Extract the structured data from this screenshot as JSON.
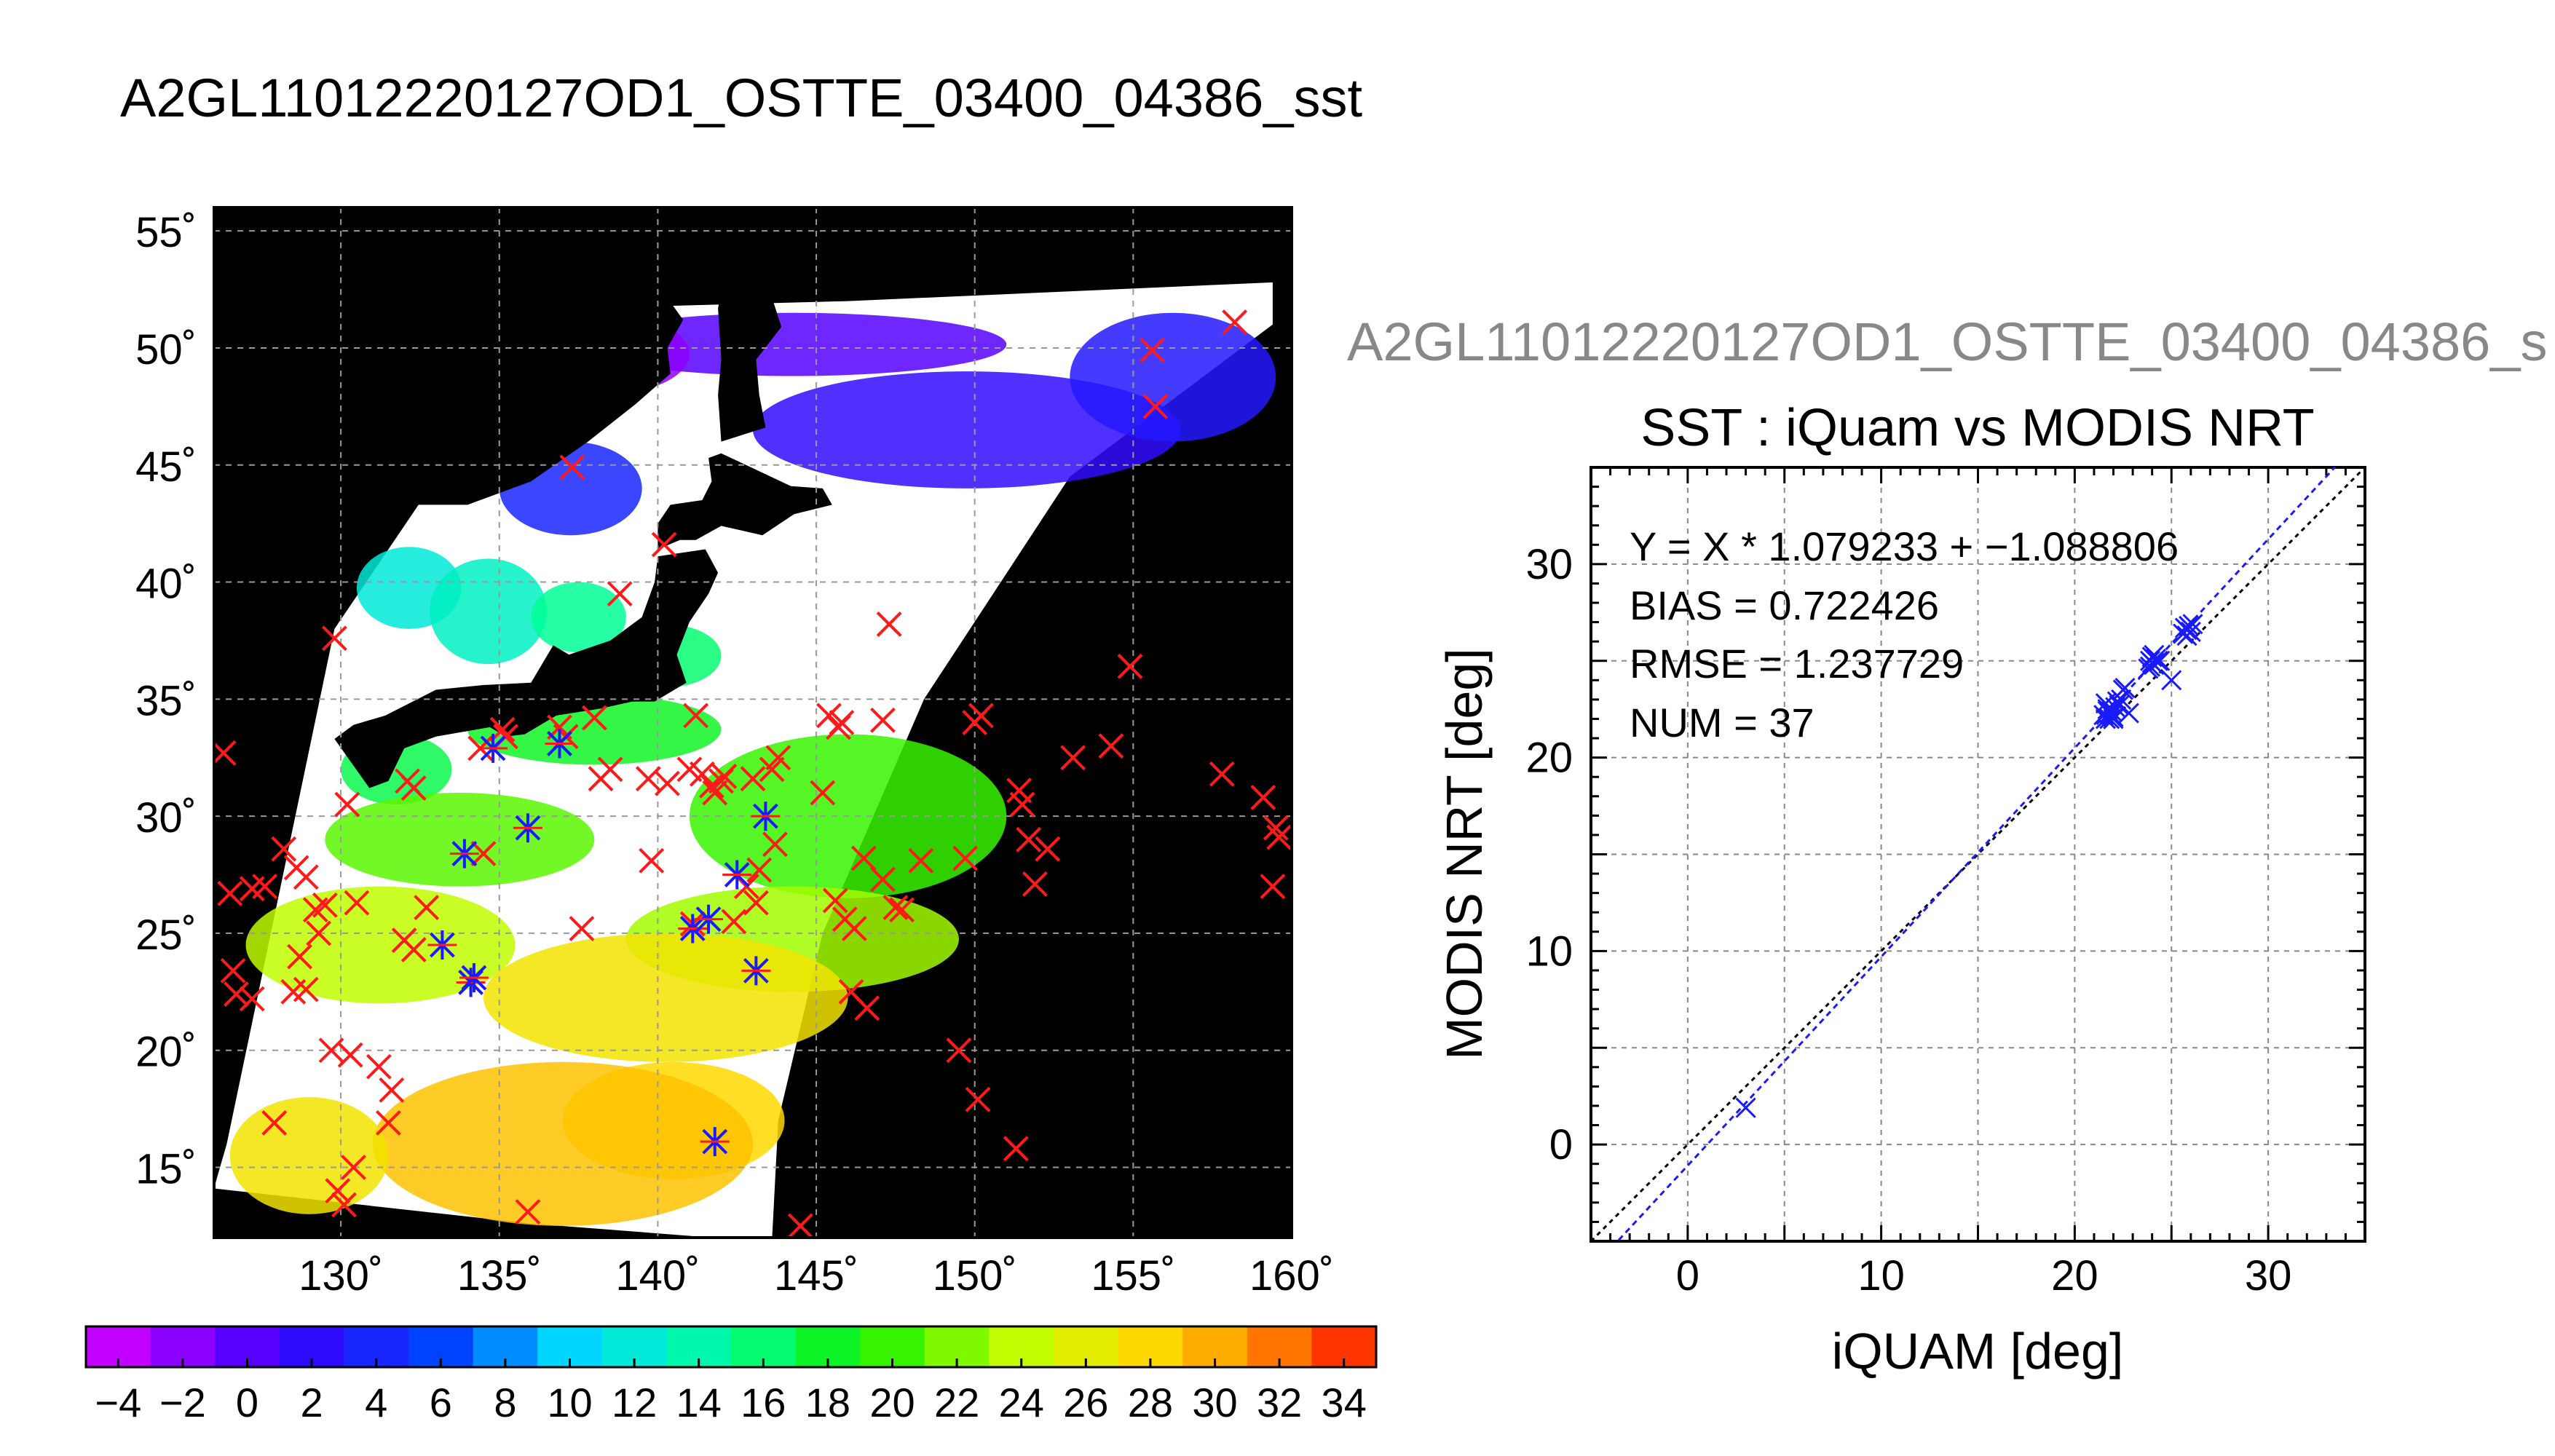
{
  "page": {
    "title": "A2GL11012220127OD1_OSTTE_03400_04386_sst"
  },
  "map": {
    "lat_ticks": [
      "55˚",
      "50˚",
      "45˚",
      "40˚",
      "35˚",
      "30˚",
      "25˚",
      "20˚",
      "15˚"
    ],
    "lon_ticks": [
      "130˚",
      "135˚",
      "140˚",
      "145˚",
      "150˚",
      "155˚",
      "160˚"
    ],
    "lon_range": [
      126,
      160
    ],
    "lat_range": [
      12,
      56
    ],
    "grid": true,
    "background": "#000000",
    "cloud_color": "#ffffff",
    "red_marker_color": "#ff1a1a",
    "blue_marker_color": "#1a1aff",
    "colorbar": {
      "min": -5,
      "max": 35,
      "ticks": [
        "−4",
        "−2",
        "0",
        "2",
        "4",
        "6",
        "8",
        "10",
        "12",
        "14",
        "16",
        "18",
        "20",
        "22",
        "24",
        "26",
        "28",
        "30",
        "32",
        "34"
      ]
    },
    "red_markers": [
      [
        126.3,
        32.7
      ],
      [
        126.5,
        26.7
      ],
      [
        127.2,
        26.9
      ],
      [
        127.6,
        27.0
      ],
      [
        126.6,
        23.4
      ],
      [
        126.7,
        22.4
      ],
      [
        127.2,
        22.2
      ],
      [
        129.5,
        26.2
      ],
      [
        129.3,
        25.0
      ],
      [
        128.2,
        28.6
      ],
      [
        128.6,
        27.8
      ],
      [
        128.9,
        27.4
      ],
      [
        129.2,
        26.0
      ],
      [
        128.7,
        24.0
      ],
      [
        128.5,
        22.5
      ],
      [
        128.9,
        22.6
      ],
      [
        129.8,
        37.6
      ],
      [
        130.2,
        30.5
      ],
      [
        130.5,
        26.3
      ],
      [
        129.7,
        20.0
      ],
      [
        130.3,
        19.8
      ],
      [
        131.2,
        19.3
      ],
      [
        131.6,
        18.3
      ],
      [
        131.5,
        16.9
      ],
      [
        127.9,
        16.9
      ],
      [
        129.9,
        14.0
      ],
      [
        130.1,
        13.4
      ],
      [
        130.4,
        15.0
      ],
      [
        132.1,
        31.5
      ],
      [
        132.3,
        31.2
      ],
      [
        132.0,
        24.7
      ],
      [
        132.3,
        24.3
      ],
      [
        132.7,
        26.1
      ],
      [
        134.4,
        32.9
      ],
      [
        134.5,
        28.4
      ],
      [
        135.1,
        33.7
      ],
      [
        135.2,
        33.4
      ],
      [
        136.9,
        33.8
      ],
      [
        137.1,
        33.4
      ],
      [
        138.0,
        34.2
      ],
      [
        138.2,
        31.6
      ],
      [
        138.5,
        32.0
      ],
      [
        139.7,
        31.6
      ],
      [
        137.6,
        25.2
      ],
      [
        135.9,
        13.1
      ],
      [
        140.2,
        41.6
      ],
      [
        137.3,
        44.9
      ],
      [
        138.8,
        39.5
      ],
      [
        141.2,
        34.3
      ],
      [
        141.0,
        32.0
      ],
      [
        141.7,
        31.3
      ],
      [
        141.8,
        31.0
      ],
      [
        141.4,
        31.8
      ],
      [
        142.0,
        31.5
      ],
      [
        142.1,
        31.7
      ],
      [
        143.0,
        31.6
      ],
      [
        143.8,
        32.5
      ],
      [
        142.8,
        27.0
      ],
      [
        143.2,
        27.7
      ],
      [
        143.1,
        26.3
      ],
      [
        143.7,
        28.8
      ],
      [
        143.6,
        32.0
      ],
      [
        139.8,
        28.1
      ],
      [
        140.3,
        31.4
      ],
      [
        142.4,
        25.5
      ],
      [
        141.1,
        25.4
      ],
      [
        145.4,
        34.3
      ],
      [
        145.8,
        34.0
      ],
      [
        145.7,
        33.8
      ],
      [
        147.1,
        34.1
      ],
      [
        147.3,
        38.2
      ],
      [
        145.2,
        31.0
      ],
      [
        146.5,
        28.2
      ],
      [
        145.6,
        26.4
      ],
      [
        145.9,
        25.6
      ],
      [
        146.2,
        25.2
      ],
      [
        147.1,
        27.3
      ],
      [
        147.5,
        26.1
      ],
      [
        147.7,
        26.0
      ],
      [
        148.3,
        28.1
      ],
      [
        149.7,
        28.2
      ],
      [
        150.0,
        34.0
      ],
      [
        150.2,
        34.3
      ],
      [
        151.4,
        31.1
      ],
      [
        151.5,
        30.5
      ],
      [
        151.7,
        29.0
      ],
      [
        151.9,
        27.1
      ],
      [
        152.3,
        28.6
      ],
      [
        153.1,
        32.5
      ],
      [
        154.3,
        33.0
      ],
      [
        154.9,
        36.4
      ],
      [
        155.6,
        49.9
      ],
      [
        155.7,
        47.5
      ],
      [
        158.2,
        51.1
      ],
      [
        146.1,
        22.5
      ],
      [
        146.6,
        21.8
      ],
      [
        149.5,
        20.0
      ],
      [
        150.1,
        17.9
      ],
      [
        151.3,
        15.8
      ],
      [
        144.5,
        12.5
      ],
      [
        157.8,
        31.8
      ],
      [
        159.1,
        30.8
      ],
      [
        159.5,
        29.5
      ],
      [
        159.6,
        29.1
      ],
      [
        159.4,
        27.0
      ]
    ],
    "blue_markers": [
      [
        134.8,
        32.9
      ],
      [
        136.9,
        33.1
      ],
      [
        133.2,
        24.5
      ],
      [
        134.1,
        22.9
      ],
      [
        134.2,
        23.1
      ],
      [
        135.9,
        29.5
      ],
      [
        133.9,
        28.4
      ],
      [
        141.1,
        25.2
      ],
      [
        141.6,
        25.6
      ],
      [
        142.5,
        27.5
      ],
      [
        143.4,
        30.0
      ],
      [
        143.1,
        23.4
      ],
      [
        141.8,
        16.1
      ]
    ],
    "color_patches": [
      {
        "lon": [
          137.5,
          151.0
        ],
        "lat": [
          48.8,
          51.5
        ],
        "sst": 0
      },
      {
        "lon": [
          135.5,
          141.0
        ],
        "lat": [
          48.0,
          51.5
        ],
        "sst": -2
      },
      {
        "lon": [
          143.0,
          156.5
        ],
        "lat": [
          44.0,
          49.0
        ],
        "sst": 2
      },
      {
        "lon": [
          153.0,
          159.5
        ],
        "lat": [
          46.0,
          51.5
        ],
        "sst": 3
      },
      {
        "lon": [
          135.0,
          139.5
        ],
        "lat": [
          42.0,
          46.0
        ],
        "sst": 4
      },
      {
        "lon": [
          130.5,
          133.8
        ],
        "lat": [
          38.0,
          41.5
        ],
        "sst": 12
      },
      {
        "lon": [
          132.8,
          136.5
        ],
        "lat": [
          36.5,
          41.0
        ],
        "sst": 13
      },
      {
        "lon": [
          136.0,
          139.0
        ],
        "lat": [
          37.0,
          40.0
        ],
        "sst": 15
      },
      {
        "lon": [
          138.5,
          142.0
        ],
        "lat": [
          35.5,
          38.2
        ],
        "sst": 16
      },
      {
        "lon": [
          130.0,
          133.5
        ],
        "lat": [
          30.5,
          33.5
        ],
        "sst": 17
      },
      {
        "lon": [
          134.0,
          142.0
        ],
        "lat": [
          32.2,
          35.2
        ],
        "sst": 18
      },
      {
        "lon": [
          129.5,
          138.0
        ],
        "lat": [
          27.0,
          31.0
        ],
        "sst": 21
      },
      {
        "lon": [
          141.0,
          151.0
        ],
        "lat": [
          26.5,
          33.5
        ],
        "sst": 20
      },
      {
        "lon": [
          139.0,
          149.5
        ],
        "lat": [
          22.5,
          27.0
        ],
        "sst": 23
      },
      {
        "lon": [
          127.0,
          135.5
        ],
        "lat": [
          22.0,
          27.0
        ],
        "sst": 24
      },
      {
        "lon": [
          134.5,
          146.0
        ],
        "lat": [
          19.5,
          25.0
        ],
        "sst": 27
      },
      {
        "lon": [
          137.0,
          144.0
        ],
        "lat": [
          14.5,
          19.5
        ],
        "sst": 28
      },
      {
        "lon": [
          131.0,
          143.0
        ],
        "lat": [
          12.5,
          19.5
        ],
        "sst": 29
      },
      {
        "lon": [
          126.5,
          131.5
        ],
        "lat": [
          13.0,
          18.0
        ],
        "sst": 27
      }
    ],
    "land": {
      "japan_main": [
        [
          129.8,
          33.3
        ],
        [
          130.9,
          31.2
        ],
        [
          131.5,
          31.5
        ],
        [
          132.0,
          32.9
        ],
        [
          133.0,
          33.4
        ],
        [
          134.7,
          33.8
        ],
        [
          135.2,
          33.4
        ],
        [
          135.8,
          33.5
        ],
        [
          136.8,
          34.3
        ],
        [
          138.2,
          34.6
        ],
        [
          139.2,
          34.9
        ],
        [
          139.9,
          34.9
        ],
        [
          140.9,
          35.7
        ],
        [
          140.6,
          36.9
        ],
        [
          141.0,
          38.3
        ],
        [
          141.6,
          39.5
        ],
        [
          141.9,
          40.4
        ],
        [
          141.5,
          41.4
        ],
        [
          140.0,
          41.1
        ],
        [
          139.9,
          40.0
        ],
        [
          139.5,
          38.5
        ],
        [
          138.5,
          37.5
        ],
        [
          137.2,
          36.9
        ],
        [
          136.7,
          37.3
        ],
        [
          136.0,
          35.7
        ],
        [
          134.5,
          35.6
        ],
        [
          133.0,
          35.4
        ],
        [
          131.4,
          34.3
        ],
        [
          130.4,
          33.9
        ]
      ],
      "hokkaido": [
        [
          140.0,
          41.4
        ],
        [
          140.7,
          41.8
        ],
        [
          141.2,
          41.8
        ],
        [
          142.0,
          42.4
        ],
        [
          143.3,
          42.0
        ],
        [
          144.3,
          42.9
        ],
        [
          145.5,
          43.3
        ],
        [
          145.2,
          44.0
        ],
        [
          144.2,
          44.1
        ],
        [
          142.0,
          45.5
        ],
        [
          141.6,
          45.3
        ],
        [
          141.7,
          44.3
        ],
        [
          141.4,
          43.5
        ],
        [
          140.4,
          43.3
        ],
        [
          140.0,
          42.5
        ]
      ],
      "sakhalin": [
        [
          142.0,
          46.0
        ],
        [
          143.4,
          46.6
        ],
        [
          143.2,
          48.0
        ],
        [
          143.1,
          49.5
        ],
        [
          143.9,
          50.9
        ],
        [
          143.4,
          53.0
        ],
        [
          142.7,
          54.3
        ],
        [
          142.2,
          53.5
        ],
        [
          141.9,
          51.7
        ],
        [
          142.0,
          49.5
        ],
        [
          141.9,
          48.0
        ]
      ],
      "asia": [
        [
          126,
          56
        ],
        [
          138.4,
          56
        ],
        [
          138.5,
          54.4
        ],
        [
          139.9,
          52.9
        ],
        [
          140.8,
          51.2
        ],
        [
          140.3,
          50.0
        ],
        [
          140.4,
          48.9
        ],
        [
          139.3,
          47.6
        ],
        [
          137.8,
          46.0
        ],
        [
          136.0,
          44.3
        ],
        [
          134.0,
          43.3
        ],
        [
          132.3,
          43.3
        ],
        [
          131.1,
          42.7
        ],
        [
          130.6,
          42.4
        ],
        [
          129.8,
          41.2
        ],
        [
          129.3,
          40.0
        ],
        [
          128.7,
          38.7
        ],
        [
          129.4,
          37.1
        ],
        [
          129.3,
          35.4
        ],
        [
          128.5,
          35.0
        ],
        [
          127.2,
          34.6
        ],
        [
          126.3,
          34.4
        ],
        [
          126,
          35
        ]
      ],
      "kyushu_korea_gap": [
        [
          126,
          34.6
        ],
        [
          126.4,
          34.4
        ],
        [
          126,
          34.0
        ]
      ]
    }
  },
  "scatter": {
    "file_label": "A2GL11012220127OD1_OSTTE_03400_04386_s",
    "stats": {
      "fit": "Y = X * 1.079233 + −1.088806",
      "bias": "BIAS = 0.722426",
      "rmse": "RMSE = 1.237729",
      "num": "NUM = 37"
    }
  },
  "chart_data": {
    "type": "scatter",
    "title": "SST : iQuam vs MODIS NRT",
    "xlabel": "iQUAM [deg]",
    "ylabel": "MODIS NRT [deg]",
    "xlim": [
      -5,
      35
    ],
    "ylim": [
      -5,
      35
    ],
    "xticks": [
      0,
      10,
      20,
      30
    ],
    "yticks": [
      0,
      10,
      20,
      30
    ],
    "grid": true,
    "marker": "x",
    "marker_color": "#1a1aff",
    "fit": {
      "slope": 1.079233,
      "intercept": -1.088806,
      "color": "#1a1aff",
      "style": "dashed"
    },
    "identity_line": {
      "color": "#000000",
      "style": "dashed"
    },
    "x": [
      3.0,
      21.5,
      21.7,
      21.8,
      21.9,
      22.0,
      22.1,
      21.6,
      21.8,
      22.4,
      22.5,
      22.3,
      22.8,
      23.8,
      23.9,
      24.0,
      24.1,
      24.2,
      24.0,
      24.3,
      25.0,
      25.6,
      25.8,
      25.9,
      26.0,
      25.7,
      21.6,
      21.9,
      22.2,
      24.1,
      23.9,
      25.8,
      26.1,
      22.0,
      24.4,
      22.6,
      21.7
    ],
    "y": [
      1.9,
      22.2,
      22.5,
      22.0,
      22.4,
      22.1,
      22.6,
      22.0,
      22.3,
      23.0,
      23.5,
      22.7,
      22.3,
      24.6,
      25.0,
      25.2,
      24.8,
      25.1,
      24.9,
      25.0,
      24.0,
      26.4,
      26.6,
      26.8,
      26.5,
      26.7,
      22.8,
      22.2,
      22.9,
      25.3,
      24.7,
      26.3,
      26.9,
      22.0,
      25.0,
      23.6,
      22.4
    ]
  }
}
